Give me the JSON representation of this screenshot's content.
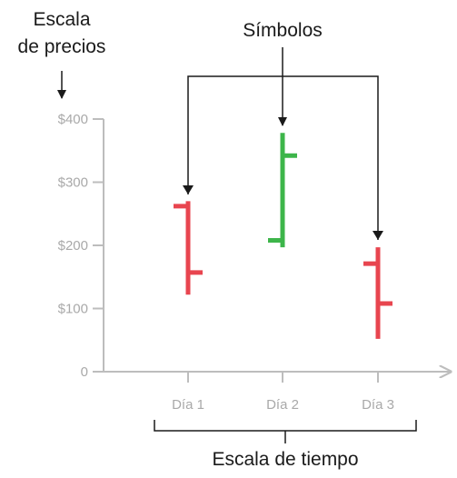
{
  "annotations": {
    "price_scale_line1": "Escala",
    "price_scale_line2": "de precios",
    "symbols": "Símbolos",
    "time_scale": "Escala de tiempo"
  },
  "colors": {
    "down": "#e8454f",
    "up": "#3db54a",
    "axis": "#bdbdbd",
    "tick_text": "#a9a9a9",
    "annotation": "#1a1a1a"
  },
  "chart_data": {
    "type": "ohlc",
    "ylim": [
      0,
      400
    ],
    "yticks": [
      {
        "value": 400,
        "label": "$400"
      },
      {
        "value": 300,
        "label": "$300"
      },
      {
        "value": 200,
        "label": "$200"
      },
      {
        "value": 100,
        "label": "$100"
      },
      {
        "value": 0,
        "label": "0"
      }
    ],
    "categories": [
      "Día 1",
      "Día 2",
      "Día 3"
    ],
    "bars": [
      {
        "category": "Día 1",
        "open": 262,
        "high": 270,
        "low": 122,
        "close": 157,
        "direction": "down"
      },
      {
        "category": "Día 2",
        "open": 208,
        "high": 378,
        "low": 197,
        "close": 342,
        "direction": "up"
      },
      {
        "category": "Día 3",
        "open": 171,
        "high": 197,
        "low": 52,
        "close": 108,
        "direction": "down"
      }
    ],
    "grid": false,
    "legend": "none"
  }
}
